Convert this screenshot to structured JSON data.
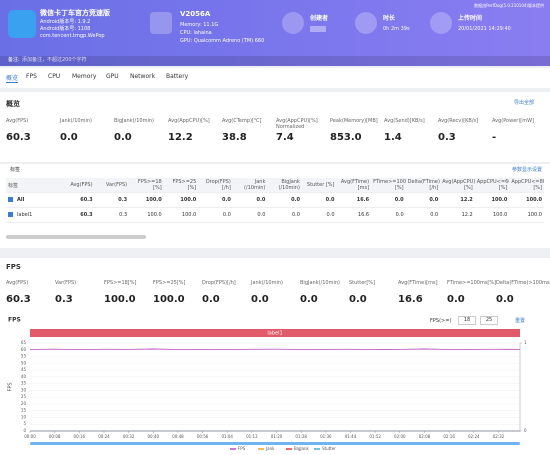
{
  "header": {
    "app": {
      "name": "微信卡丁车官方竞速版",
      "version1": "Android版本号: 1.9.2",
      "version2": "Android版本号: 1108",
      "package": "com.tencent.tmgp.WePop"
    },
    "device": {
      "name": "V2056A",
      "memory": "Memory: 11.1G",
      "cpu": "CPU: lahaina",
      "gpu": "GPU: Qualcomm Adreno (TM) 660"
    },
    "creator": {
      "label": "创建者"
    },
    "duration": {
      "label": "时长",
      "value": "0h 2m 39s"
    },
    "upload": {
      "label": "上传时间",
      "value": "20/01/2021 14:29:40"
    },
    "provider": "数据由PerfDog(5.0.210104)版本提供"
  },
  "note": {
    "label": "备注:",
    "placeholder": "添加备注，不超过200个字符"
  },
  "tabs": [
    "概览",
    "FPS",
    "CPU",
    "Memory",
    "GPU",
    "Network",
    "Battery"
  ],
  "overview": {
    "title": "概览",
    "export": "导出全部",
    "metrics": [
      {
        "label": "Avg(FPS)",
        "value": "60.3"
      },
      {
        "label": "Jank(/10min)",
        "value": "0.0"
      },
      {
        "label": "BigJank(/10min)",
        "value": "0.0"
      },
      {
        "label": "Avg(AppCPU)[%]",
        "value": "12.2"
      },
      {
        "label": "Avg(CTemp)[℃]",
        "value": "38.8"
      },
      {
        "label": "Avg(AppCPU)[%] Normalized",
        "value": "7.4"
      },
      {
        "label": "Peak(Memory)[MB]",
        "value": "853.0"
      },
      {
        "label": "Avg(Send)[KB/s]",
        "value": "1.4"
      },
      {
        "label": "Avg(Recv)[KB/s]",
        "value": "0.3"
      },
      {
        "label": "Avg(Power)[mW]",
        "value": "-"
      }
    ]
  },
  "labels": {
    "title": "标签",
    "settings": "参数显示设置",
    "columns": [
      "标签",
      "Avg(FPS)",
      "Var(FPS)",
      "FPS>=18 [%]",
      "FPS>=25 [%]",
      "Drop(FPS) [/h]",
      "Jank (/10min)",
      "BigJank (/10min)",
      "Stutter [%]",
      "Avg(FTime) [ms]",
      "FTime>=100ms [%]",
      "Delta(FTime)>100ms [/h]",
      "Avg(AppCPU) [%]",
      "AppCPU<=60% [%]",
      "AppCPU<=80% [%]"
    ],
    "rows": [
      [
        "All",
        "60.3",
        "0.3",
        "100.0",
        "100.0",
        "0.0",
        "0.0",
        "0.0",
        "0.0",
        "16.6",
        "0.0",
        "0.0",
        "12.2",
        "100.0",
        "100.0"
      ],
      [
        "label1",
        "60.3",
        "0.3",
        "100.0",
        "100.0",
        "0.0",
        "0.0",
        "0.0",
        "0.0",
        "16.6",
        "0.0",
        "0.0",
        "12.2",
        "100.0",
        "100.0"
      ]
    ]
  },
  "fps": {
    "title": "FPS",
    "metrics": [
      {
        "label": "Avg(FPS)",
        "value": "60.3"
      },
      {
        "label": "Var(FPS)",
        "value": "0.3"
      },
      {
        "label": "FPS>=18[%]",
        "value": "100.0"
      },
      {
        "label": "FPS>=25[%]",
        "value": "100.0"
      },
      {
        "label": "Drop(FPS)[/h]",
        "value": "0.0"
      },
      {
        "label": "Jank(/10min)",
        "value": "0.0"
      },
      {
        "label": "BigJank(/10min)",
        "value": "0.0"
      },
      {
        "label": "Stutter[%]",
        "value": "0.0"
      },
      {
        "label": "Avg(FTime)[ms]",
        "value": "16.6"
      },
      {
        "label": "FTime>=100ms[%]",
        "value": "0.0"
      },
      {
        "label": "Delta(FTime)>100ms[/h]",
        "value": "0.0"
      }
    ],
    "threshold_label": "FPS(>=)",
    "threshold1": "18",
    "threshold2": "25",
    "reset": "重置"
  },
  "chart_data": {
    "type": "line",
    "title": "FPS",
    "band_label": "label1",
    "ylabel": "FPS",
    "x": [
      0,
      8,
      16,
      24,
      32,
      40,
      48,
      56,
      64,
      72,
      80,
      88,
      96,
      104,
      112,
      120,
      128,
      136,
      144,
      152,
      159
    ],
    "series": [
      {
        "name": "FPS",
        "color": "#c04cc0",
        "values": [
          60.2,
          60.5,
          60.1,
          60.4,
          60.3,
          60.6,
          60.2,
          60.3,
          60.1,
          60.4,
          60.5,
          60.2,
          60.3,
          60.4,
          60.1,
          60.3,
          60.6,
          60.2,
          60.3,
          60.4,
          60.3
        ]
      },
      {
        "name": "Jank",
        "color": "#f0a030",
        "axis": "y2",
        "values": [
          0,
          0,
          0,
          0,
          0,
          0,
          0,
          0,
          0,
          0,
          0,
          0,
          0,
          0,
          0,
          0,
          0,
          0,
          0,
          0,
          0
        ]
      },
      {
        "name": "BigJank",
        "color": "#e04040",
        "axis": "y2",
        "values": [
          0,
          0,
          0,
          0,
          0,
          0,
          0,
          0,
          0,
          0,
          0,
          0,
          0,
          0,
          0,
          0,
          0,
          0,
          0,
          0,
          0
        ]
      },
      {
        "name": "Stutter",
        "color": "#40b0e0",
        "axis": "y2",
        "values": [
          0,
          0,
          0,
          0,
          0,
          0,
          0,
          0,
          0,
          0,
          0,
          0,
          0,
          0,
          0,
          0,
          0,
          0,
          0,
          0,
          0
        ]
      }
    ],
    "xlim": [
      0,
      159
    ],
    "xticks": [
      {
        "value": 0,
        "label": "00:00"
      },
      {
        "value": 8,
        "label": "00:08"
      },
      {
        "value": 16,
        "label": "00:16"
      },
      {
        "value": 24,
        "label": "00:24"
      },
      {
        "value": 32,
        "label": "00:32"
      },
      {
        "value": 40,
        "label": "00:40"
      },
      {
        "value": 48,
        "label": "00:48"
      },
      {
        "value": 56,
        "label": "00:56"
      },
      {
        "value": 64,
        "label": "01:04"
      },
      {
        "value": 72,
        "label": "01:12"
      },
      {
        "value": 80,
        "label": "01:20"
      },
      {
        "value": 88,
        "label": "01:28"
      },
      {
        "value": 96,
        "label": "01:36"
      },
      {
        "value": 104,
        "label": "01:44"
      },
      {
        "value": 112,
        "label": "01:52"
      },
      {
        "value": 120,
        "label": "02:00"
      },
      {
        "value": 128,
        "label": "02:08"
      },
      {
        "value": 136,
        "label": "02:16"
      },
      {
        "value": 144,
        "label": "02:24"
      },
      {
        "value": 152,
        "label": "02:32"
      }
    ],
    "ylim": [
      0,
      65
    ],
    "yticks": [
      0,
      5,
      10,
      15,
      20,
      25,
      30,
      35,
      40,
      45,
      50,
      55,
      60,
      65
    ],
    "y2lim": [
      0,
      1
    ],
    "y2ticks": [
      0,
      1
    ],
    "grid": true
  }
}
